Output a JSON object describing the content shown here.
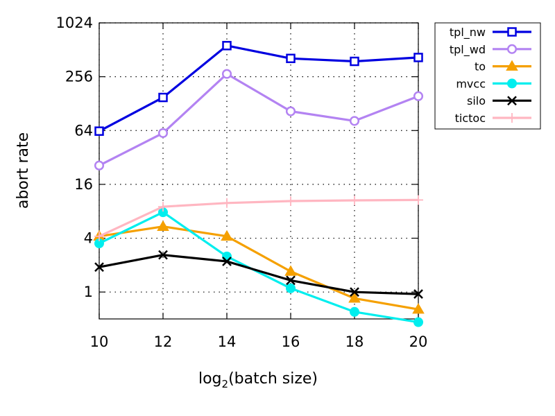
{
  "chart_data": {
    "type": "line",
    "title": "",
    "xlabel": "log",
    "xlabel_sub": "2",
    "xlabel_rest": "(batch size)",
    "ylabel": "abort rate",
    "yscale": "log2",
    "xlim": [
      10,
      20
    ],
    "ylim_log2": [
      -1,
      10
    ],
    "x_ticks": [
      "10",
      "12",
      "14",
      "16",
      "18",
      "20"
    ],
    "y_ticks": [
      "1",
      "4",
      "16",
      "64",
      "256",
      "1024"
    ],
    "grid": "dotted",
    "legend_position": "outside-top-right",
    "x": [
      10,
      12,
      14,
      16,
      18,
      20
    ],
    "series": [
      {
        "name": "tpl_nw",
        "color": "#0000e0",
        "marker": "square",
        "values": [
          63,
          150,
          570,
          410,
          380,
          420
        ]
      },
      {
        "name": "tpl_wd",
        "color": "#b383f2",
        "marker": "circle",
        "values": [
          26,
          60,
          275,
          105,
          82,
          155
        ]
      },
      {
        "name": "to",
        "color": "#f5a000",
        "marker": "triangle",
        "values": [
          4.2,
          5.4,
          4.2,
          1.7,
          0.85,
          0.64
        ]
      },
      {
        "name": "mvcc",
        "color": "#00eeee",
        "marker": "dot",
        "values": [
          3.5,
          7.8,
          2.5,
          1.1,
          0.6,
          0.46
        ]
      },
      {
        "name": "silo",
        "color": "#000000",
        "marker": "x",
        "values": [
          1.9,
          2.6,
          2.2,
          1.35,
          1.0,
          0.95
        ]
      },
      {
        "name": "tictoc",
        "color": "#ffb6c1",
        "marker": "plus",
        "values": [
          4.2,
          9.0,
          9.9,
          10.4,
          10.6,
          10.7
        ]
      }
    ]
  }
}
